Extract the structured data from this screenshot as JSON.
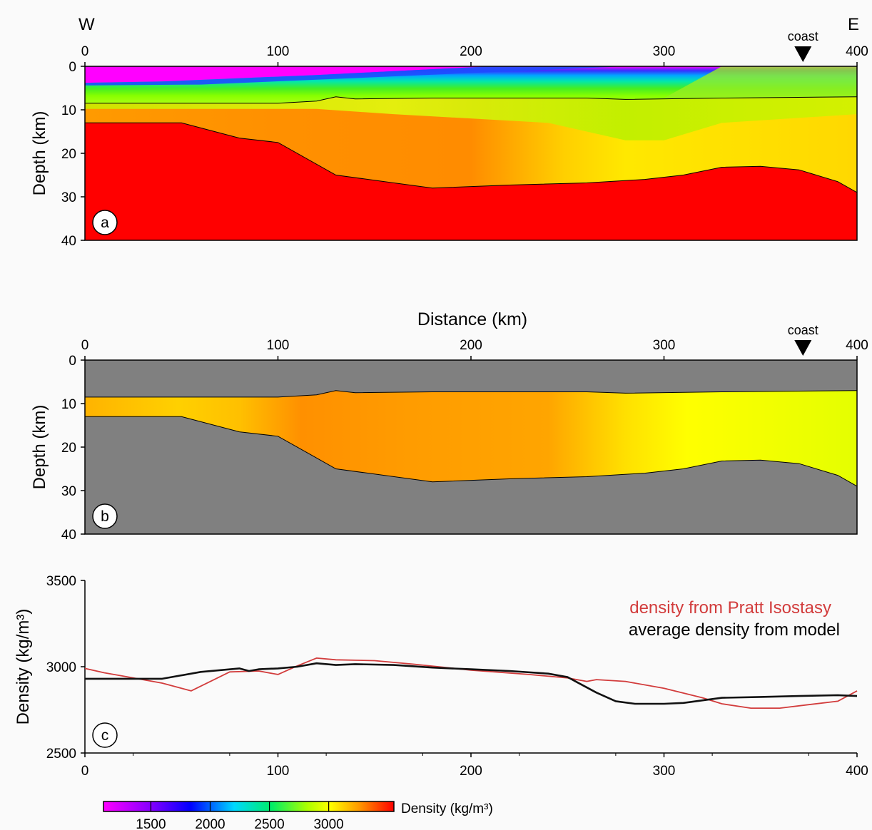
{
  "figure": {
    "dir_west": "W",
    "dir_east": "E",
    "coast_label": "coast",
    "distance_label": "Distance (km)",
    "colorbar_label": "Density (kg/m³)"
  },
  "chart_data": [
    {
      "type": "heatmap",
      "panel_label": "a",
      "ylabel": "Depth (km)",
      "xlim": [
        0,
        400
      ],
      "ylim": [
        40,
        0
      ],
      "x_ticks": [
        0,
        100,
        200,
        300,
        400
      ],
      "y_ticks": [
        0,
        10,
        20,
        30,
        40
      ],
      "coast_km": 372,
      "layers_description_values": {
        "sediment_base_depth_km": [
          [
            0,
            8.5
          ],
          [
            100,
            8.5
          ],
          [
            120,
            8.0
          ],
          [
            130,
            7.0
          ],
          [
            140,
            7.5
          ],
          [
            180,
            7.3
          ],
          [
            260,
            7.3
          ],
          [
            280,
            7.6
          ],
          [
            330,
            7.3
          ],
          [
            400,
            7.0
          ]
        ],
        "moho_depth_km": [
          [
            0,
            13.0
          ],
          [
            50,
            13.0
          ],
          [
            80,
            16.5
          ],
          [
            100,
            17.5
          ],
          [
            130,
            25.0
          ],
          [
            180,
            28.0
          ],
          [
            220,
            27.3
          ],
          [
            260,
            26.8
          ],
          [
            290,
            26.0
          ],
          [
            310,
            25.0
          ],
          [
            330,
            23.2
          ],
          [
            350,
            23.0
          ],
          [
            370,
            23.8
          ],
          [
            390,
            26.5
          ],
          [
            400,
            29.0
          ]
        ],
        "sediment_density_range": [
          1500,
          2900
        ],
        "crust_density_range": [
          2850,
          3050
        ],
        "mantle_density": 3300
      }
    },
    {
      "type": "heatmap",
      "panel_label": "b",
      "ylabel": "Depth (km)",
      "xlim": [
        0,
        400
      ],
      "ylim": [
        40,
        0
      ],
      "x_ticks": [
        0,
        100,
        200,
        300,
        400
      ],
      "y_ticks": [
        0,
        10,
        20,
        30,
        40
      ],
      "coast_km": 372
    },
    {
      "type": "line",
      "panel_label": "c",
      "ylabel": "Density (kg/m³)",
      "xlim": [
        0,
        400
      ],
      "ylim": [
        2500,
        3500
      ],
      "x_ticks": [
        0,
        100,
        200,
        300,
        400
      ],
      "y_ticks": [
        2500,
        3000,
        3500
      ],
      "series": [
        {
          "name": "density from Pratt Isostasy",
          "color": "#d23c3c",
          "x": [
            0,
            10,
            20,
            40,
            55,
            75,
            90,
            100,
            110,
            120,
            130,
            150,
            170,
            200,
            230,
            250,
            260,
            265,
            280,
            300,
            320,
            330,
            345,
            360,
            375,
            390,
            400
          ],
          "y": [
            2990,
            2965,
            2945,
            2905,
            2860,
            2970,
            2975,
            2955,
            3005,
            3050,
            3040,
            3035,
            3015,
            2980,
            2955,
            2935,
            2915,
            2925,
            2915,
            2875,
            2820,
            2785,
            2760,
            2760,
            2780,
            2800,
            2860
          ]
        },
        {
          "name": "average density from model",
          "color": "#111111",
          "x": [
            0,
            20,
            40,
            45,
            60,
            80,
            85,
            90,
            100,
            110,
            120,
            130,
            140,
            160,
            180,
            200,
            220,
            240,
            250,
            255,
            265,
            275,
            285,
            300,
            310,
            320,
            330,
            350,
            370,
            390,
            400
          ],
          "y": [
            2930,
            2930,
            2930,
            2940,
            2970,
            2990,
            2975,
            2985,
            2990,
            3000,
            3020,
            3010,
            3015,
            3010,
            2995,
            2985,
            2975,
            2960,
            2940,
            2910,
            2850,
            2800,
            2785,
            2785,
            2790,
            2805,
            2820,
            2825,
            2830,
            2835,
            2830
          ]
        }
      ]
    },
    {
      "type": "colorbar",
      "label": "Density (kg/m³)",
      "range": [
        1100,
        3550
      ],
      "ticks": [
        1500,
        2000,
        2500,
        3000
      ],
      "stops": [
        "#ff00ff",
        "#0000ff",
        "#00e5ff",
        "#00ee66",
        "#bbff00",
        "#ffff00",
        "#ff9900",
        "#ff0000"
      ]
    }
  ]
}
